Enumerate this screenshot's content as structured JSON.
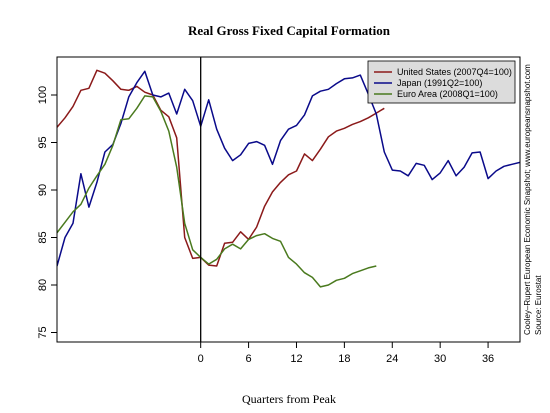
{
  "chart_data": {
    "type": "line",
    "title": "Real Gross Fixed Capital Formation",
    "xlabel": "Quarters from Peak",
    "ylabel": "",
    "xlim": [
      -18,
      40
    ],
    "ylim": [
      74,
      104
    ],
    "x_ticks": [
      0,
      6,
      12,
      18,
      24,
      30,
      36
    ],
    "y_ticks": [
      75,
      80,
      85,
      90,
      95,
      100
    ],
    "grid": false,
    "legend_position": "top-right",
    "peak_line_x": 0,
    "source_note_1": "Cooley–Rupert European Economic Snapshot; www.europeansnapshot.com",
    "source_note_2": "Source: Eurostat",
    "series": [
      {
        "name": "United States (2007Q4=100)",
        "color": "#8b1a1a",
        "x": [
          -18,
          -17,
          -16,
          -15,
          -14,
          -13,
          -12,
          -11,
          -10,
          -9,
          -8,
          -7,
          -6,
          -5,
          -4,
          -3,
          -2,
          -1,
          0,
          1,
          2,
          3,
          4,
          5,
          6,
          7,
          8,
          9,
          10,
          11,
          12,
          13,
          14,
          15,
          16,
          17,
          18,
          19,
          20,
          21,
          22,
          23
        ],
        "y": [
          96.6,
          97.6,
          98.8,
          100.5,
          100.7,
          102.6,
          102.3,
          101.5,
          100.6,
          100.5,
          100.9,
          100.3,
          100.0,
          98.4,
          97.7,
          95.5,
          85.0,
          82.8,
          82.9,
          82.1,
          82.0,
          84.4,
          84.5,
          85.6,
          84.8,
          86.1,
          88.3,
          89.8,
          90.8,
          91.6,
          92.0,
          93.8,
          93.1,
          94.3,
          95.6,
          96.2,
          96.5,
          96.9,
          97.2,
          97.6,
          98.1,
          98.6
        ]
      },
      {
        "name": "Japan (1991Q2=100)",
        "color": "#0a0a8a",
        "x": [
          -18,
          -17,
          -16,
          -15,
          -14,
          -13,
          -12,
          -11,
          -10,
          -9,
          -8,
          -7,
          -6,
          -5,
          -4,
          -3,
          -2,
          -1,
          0,
          1,
          2,
          3,
          4,
          5,
          6,
          7,
          8,
          9,
          10,
          11,
          12,
          13,
          14,
          15,
          16,
          17,
          18,
          19,
          20,
          21,
          22,
          23,
          24,
          25,
          26,
          27,
          28,
          29,
          30,
          31,
          32,
          33,
          34,
          35,
          36,
          37,
          38,
          39,
          40
        ],
        "y": [
          82.0,
          85.0,
          86.5,
          91.7,
          88.2,
          90.8,
          94.0,
          94.8,
          97.0,
          99.8,
          101.3,
          102.5,
          100.0,
          99.8,
          100.2,
          98.0,
          100.6,
          99.4,
          96.7,
          99.5,
          96.4,
          94.4,
          93.1,
          93.7,
          94.9,
          95.1,
          94.7,
          92.7,
          95.2,
          96.4,
          96.8,
          97.9,
          99.9,
          100.4,
          100.6,
          101.2,
          101.7,
          101.8,
          102.1,
          100.1,
          98.0,
          94.0,
          92.1,
          92.0,
          91.5,
          92.8,
          92.6,
          91.1,
          91.8,
          93.1,
          91.5,
          92.4,
          93.9,
          94.0,
          91.2,
          92.0,
          92.5,
          92.7,
          92.9
        ]
      },
      {
        "name": "Euro Area (2008Q1=100)",
        "color": "#4a7a1e",
        "x": [
          -18,
          -17,
          -16,
          -15,
          -14,
          -13,
          -12,
          -11,
          -10,
          -9,
          -8,
          -7,
          -6,
          -5,
          -4,
          -3,
          -2,
          -1,
          0,
          1,
          2,
          3,
          4,
          5,
          6,
          7,
          8,
          9,
          10,
          11,
          12,
          13,
          14,
          15,
          16,
          17,
          18,
          19,
          20,
          21,
          22
        ],
        "y": [
          85.5,
          86.6,
          87.7,
          88.5,
          90.2,
          91.5,
          92.7,
          94.7,
          97.4,
          97.5,
          98.6,
          99.9,
          99.8,
          98.3,
          96.2,
          92.4,
          86.5,
          83.7,
          82.9,
          82.2,
          82.7,
          83.8,
          84.3,
          83.8,
          84.8,
          85.2,
          85.4,
          84.9,
          84.6,
          82.9,
          82.2,
          81.3,
          80.8,
          79.8,
          80.0,
          80.5,
          80.7,
          81.2,
          81.5,
          81.8,
          82.0
        ]
      }
    ]
  }
}
